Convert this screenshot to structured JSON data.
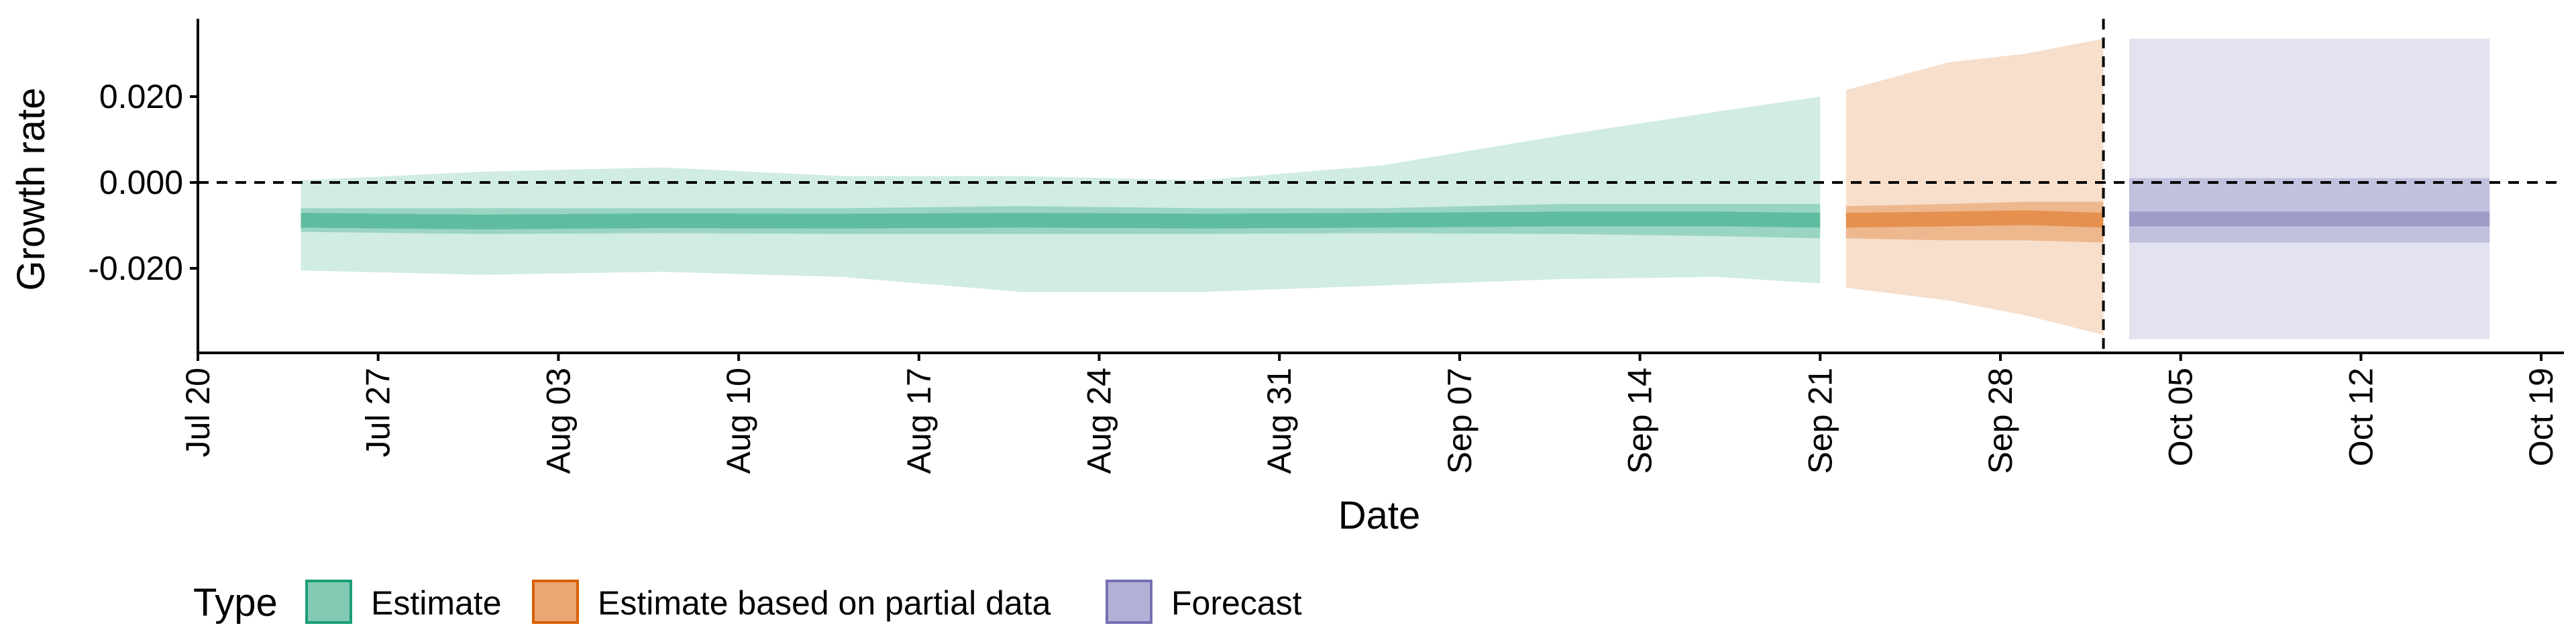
{
  "chart_data": {
    "type": "area",
    "xlabel": "Date",
    "ylabel": "Growth rate",
    "x_ticks": [
      "Jul 20",
      "Jul 27",
      "Aug 03",
      "Aug 10",
      "Aug 17",
      "Aug 24",
      "Aug 31",
      "Sep 07",
      "Sep 14",
      "Sep 21",
      "Sep 28",
      "Oct 05",
      "Oct 12",
      "Oct 19"
    ],
    "x_range": [
      "2020-07-20",
      "2020-10-20"
    ],
    "y_ticks": [
      "0.020",
      "0.000",
      "-0.020"
    ],
    "y_tick_values": [
      0.02,
      0.0,
      -0.02
    ],
    "ylim": [
      -0.04,
      0.037
    ],
    "reference_hline": 0.0,
    "reference_vline": "2020-10-02",
    "legend": {
      "title": "Type",
      "position": "bottom",
      "items": [
        "Estimate",
        "Estimate based on partial data",
        "Forecast"
      ]
    },
    "colors": {
      "Estimate": "#1b9e77",
      "Estimate based on partial data": "#d95f02",
      "Forecast": "#7570b3"
    },
    "series": [
      {
        "name": "Estimate",
        "points": [
          {
            "date": "2020-07-24",
            "median": -0.0088,
            "lower_90": -0.0205,
            "upper_90": 0.0005,
            "lower_50": -0.0115,
            "upper_50": -0.006
          },
          {
            "date": "2020-07-31",
            "median": -0.0092,
            "lower_90": -0.0215,
            "upper_90": 0.0025,
            "lower_50": -0.012,
            "upper_50": -0.006
          },
          {
            "date": "2020-08-07",
            "median": -0.0089,
            "lower_90": -0.0208,
            "upper_90": 0.0035,
            "lower_50": -0.0118,
            "upper_50": -0.006
          },
          {
            "date": "2020-08-14",
            "median": -0.009,
            "lower_90": -0.022,
            "upper_90": 0.0015,
            "lower_50": -0.012,
            "upper_50": -0.006
          },
          {
            "date": "2020-08-21",
            "median": -0.0088,
            "lower_90": -0.0255,
            "upper_90": 0.0015,
            "lower_50": -0.012,
            "upper_50": -0.0055
          },
          {
            "date": "2020-08-28",
            "median": -0.009,
            "lower_90": -0.0255,
            "upper_90": 0.0005,
            "lower_50": -0.012,
            "upper_50": -0.006
          },
          {
            "date": "2020-09-04",
            "median": -0.0088,
            "lower_90": -0.024,
            "upper_90": 0.004,
            "lower_50": -0.0118,
            "upper_50": -0.006
          },
          {
            "date": "2020-09-11",
            "median": -0.0085,
            "lower_90": -0.0225,
            "upper_90": 0.011,
            "lower_50": -0.012,
            "upper_50": -0.005
          },
          {
            "date": "2020-09-17",
            "median": -0.0085,
            "lower_90": -0.022,
            "upper_90": 0.0165,
            "lower_50": -0.0125,
            "upper_50": -0.005
          },
          {
            "date": "2020-09-21",
            "median": -0.0088,
            "lower_90": -0.0235,
            "upper_90": 0.02,
            "lower_50": -0.013,
            "upper_50": -0.005
          }
        ]
      },
      {
        "name": "Estimate based on partial data",
        "points": [
          {
            "date": "2020-09-22",
            "median": -0.0088,
            "lower_90": -0.0245,
            "upper_90": 0.0215,
            "lower_50": -0.013,
            "upper_50": -0.0055
          },
          {
            "date": "2020-09-26",
            "median": -0.0085,
            "lower_90": -0.0275,
            "upper_90": 0.028,
            "lower_50": -0.0135,
            "upper_50": -0.005
          },
          {
            "date": "2020-09-29",
            "median": -0.0082,
            "lower_90": -0.031,
            "upper_90": 0.03,
            "lower_50": -0.0135,
            "upper_50": -0.0045
          },
          {
            "date": "2020-10-02",
            "median": -0.0088,
            "lower_90": -0.0355,
            "upper_90": 0.0335,
            "lower_50": -0.014,
            "upper_50": -0.0045
          }
        ]
      },
      {
        "name": "Forecast",
        "points": [
          {
            "date": "2020-10-03",
            "median": -0.0085,
            "lower_90": -0.0365,
            "upper_90": 0.0335,
            "lower_50": -0.014,
            "upper_50": 0.001
          },
          {
            "date": "2020-10-17",
            "median": -0.0085,
            "lower_90": -0.0365,
            "upper_90": 0.0335,
            "lower_50": -0.014,
            "upper_50": 0.001
          }
        ]
      }
    ]
  }
}
